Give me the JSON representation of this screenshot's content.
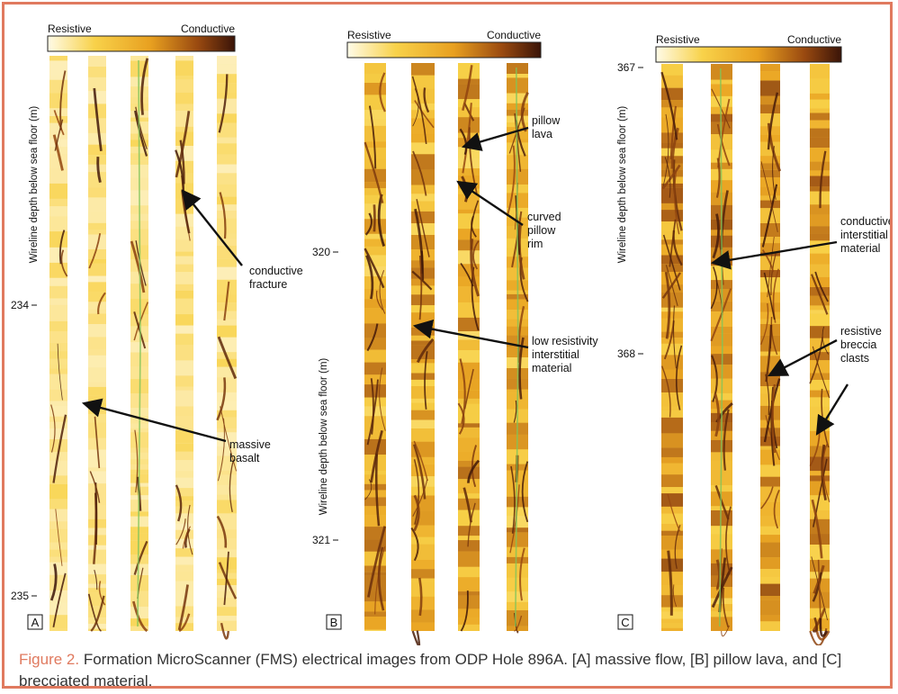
{
  "colors": {
    "frame": "#e07a5f",
    "caption_label": "#e07a5f",
    "arrow": "#111111",
    "scale_light": "#fffbe8",
    "scale_mid": "#f0a820",
    "scale_dark": "#3a1408"
  },
  "caption": {
    "label": "Figure 2.",
    "text": " Formation MicroScanner (FMS) electrical images from ODP Hole 896A. [A] massive flow, [B] pillow lava, and [C] brecciated material."
  },
  "panels": [
    {
      "id": "A",
      "panel_label": "A",
      "scale": {
        "left": "Resistive",
        "right": "Conductive"
      },
      "axis_title": "Wireline depth below sea floor (m)",
      "depth_ticks": [
        "234",
        "235"
      ],
      "annotations": [
        {
          "lines": [
            "conductive",
            "fracture"
          ]
        },
        {
          "lines": [
            "massive",
            "basalt"
          ]
        }
      ]
    },
    {
      "id": "B",
      "panel_label": "B",
      "scale": {
        "left": "Resistive",
        "right": "Conductive"
      },
      "axis_title": "Wireline depth below sea floor (m)",
      "depth_ticks": [
        "320",
        "321"
      ],
      "annotations": [
        {
          "lines": [
            "pillow",
            "lava"
          ]
        },
        {
          "lines": [
            "curved",
            "pillow",
            "rim"
          ]
        },
        {
          "lines": [
            "low resistivity",
            "interstitial",
            "material"
          ]
        }
      ]
    },
    {
      "id": "C",
      "panel_label": "C",
      "scale": {
        "left": "Resistive",
        "right": "Conductive"
      },
      "axis_title": "Wireline depth below sea floor (m)",
      "depth_ticks": [
        "367",
        "368"
      ],
      "annotations": [
        {
          "lines": [
            "conductive",
            "interstitial",
            "material"
          ]
        },
        {
          "lines": [
            "resistive",
            "breccia",
            "clasts"
          ]
        }
      ]
    }
  ]
}
